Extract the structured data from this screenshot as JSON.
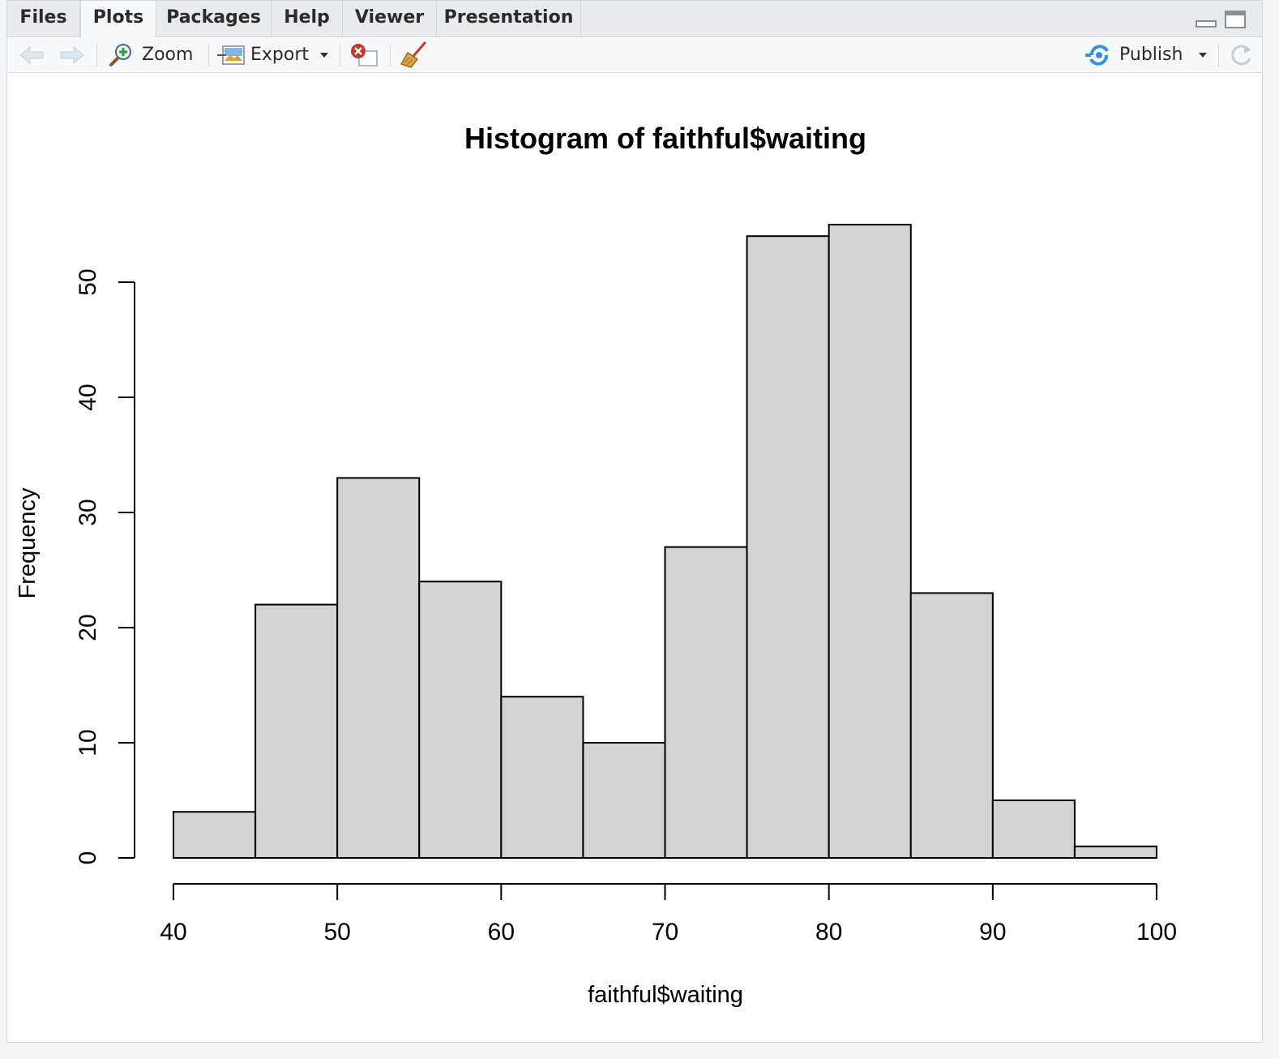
{
  "tabs": [
    {
      "label": "Files"
    },
    {
      "label": "Plots"
    },
    {
      "label": "Packages"
    },
    {
      "label": "Help"
    },
    {
      "label": "Viewer"
    },
    {
      "label": "Presentation"
    }
  ],
  "active_tab": "Plots",
  "toolbar": {
    "zoom_label": "Zoom",
    "export_label": "Export",
    "publish_label": "Publish"
  },
  "icons": {
    "back": "arrow-left-icon",
    "forward": "arrow-right-icon",
    "zoom": "magnifier-plus-icon",
    "export": "image-export-icon",
    "remove": "remove-plot-icon",
    "clear": "broom-icon",
    "publish": "publish-icon",
    "refresh": "refresh-icon",
    "minimize": "minimize-icon",
    "maximize": "maximize-icon"
  },
  "colors": {
    "bar_fill": "#d3d3d3",
    "bar_stroke": "#000000",
    "publish_accent": "#3a8fd8",
    "remove_red": "#c0392b"
  },
  "chart_data": {
    "type": "bar",
    "title": "Histogram of faithful$waiting",
    "xlabel": "faithful$waiting",
    "ylabel": "Frequency",
    "bins": [
      [
        40,
        45
      ],
      [
        45,
        50
      ],
      [
        50,
        55
      ],
      [
        55,
        60
      ],
      [
        60,
        65
      ],
      [
        65,
        70
      ],
      [
        70,
        75
      ],
      [
        75,
        80
      ],
      [
        80,
        85
      ],
      [
        85,
        90
      ],
      [
        90,
        95
      ],
      [
        95,
        100
      ]
    ],
    "values": [
      4,
      22,
      33,
      24,
      14,
      10,
      27,
      54,
      55,
      23,
      5,
      1
    ],
    "xlim": [
      40,
      100
    ],
    "ylim": [
      0,
      55
    ],
    "xticks": [
      "40",
      "50",
      "60",
      "70",
      "80",
      "90",
      "100"
    ],
    "yticks": [
      "0",
      "10",
      "20",
      "30",
      "40",
      "50"
    ],
    "grid": false,
    "legend": "none"
  }
}
